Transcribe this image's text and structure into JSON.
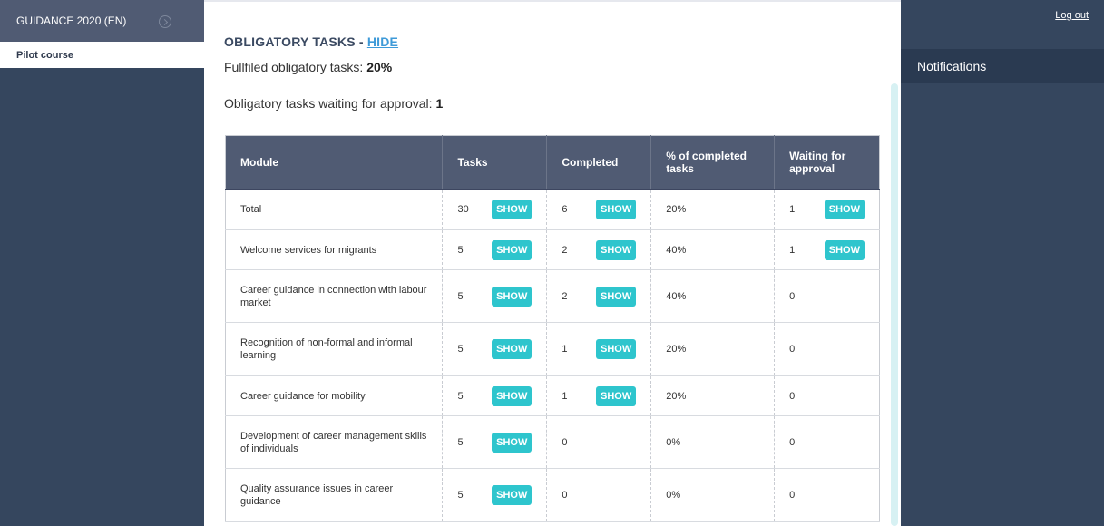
{
  "sidebar": {
    "course_title": "GUIDANCE 2020 (EN)",
    "sub_item": "Pilot course"
  },
  "header": {
    "logout": "Log out",
    "notifications": "Notifications"
  },
  "obligatory": {
    "title": "OBLIGATORY TASKS - ",
    "hide_link": "HIDE",
    "fulfilled_label": "Fullfiled obligatory tasks: ",
    "fulfilled_value": "20%",
    "waiting_label": "Obligatory tasks waiting for approval: ",
    "waiting_value": "1"
  },
  "table": {
    "columns": [
      "Module",
      "Tasks",
      "Completed",
      "% of completed tasks",
      "Waiting for approval"
    ],
    "button_label": "SHOW",
    "rows": [
      {
        "module": "Total",
        "tasks": "30",
        "completed": "6",
        "pct": "20%",
        "waiting": "1"
      },
      {
        "module": "Welcome services for migrants",
        "tasks": "5",
        "completed": "2",
        "pct": "40%",
        "waiting": "1"
      },
      {
        "module": "Career guidance in connection with labour market",
        "tasks": "5",
        "completed": "2",
        "pct": "40%",
        "waiting": "0"
      },
      {
        "module": "Recognition of non-formal and informal learning",
        "tasks": "5",
        "completed": "1",
        "pct": "20%",
        "waiting": "0"
      },
      {
        "module": "Career guidance for mobility",
        "tasks": "5",
        "completed": "1",
        "pct": "20%",
        "waiting": "0"
      },
      {
        "module": "Development of career management skills of individuals",
        "tasks": "5",
        "completed": "0",
        "pct": "0%",
        "waiting": "0"
      },
      {
        "module": "Quality assurance issues in career guidance",
        "tasks": "5",
        "completed": "0",
        "pct": "0%",
        "waiting": "0"
      }
    ]
  }
}
